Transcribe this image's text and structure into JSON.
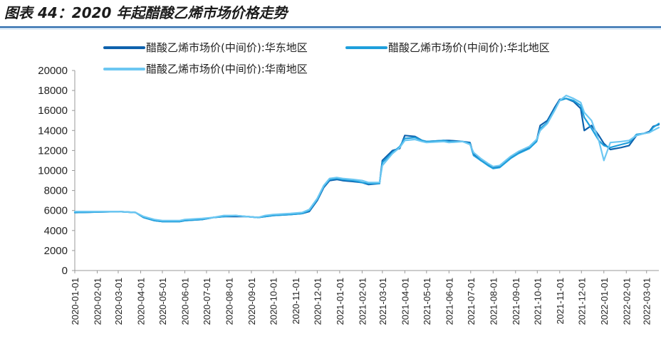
{
  "figure": {
    "title": "图表 44：2020 年起醋酸乙烯市场价格走势"
  },
  "colors": {
    "title_rule": "#1a5fa6",
    "axis": "#999999"
  },
  "chart_data": {
    "type": "line",
    "title": "图表 44：2020 年起醋酸乙烯市场价格走势",
    "xlabel": "",
    "ylabel": "",
    "ylim": [
      0,
      20000
    ],
    "yticks": [
      0,
      2000,
      4000,
      6000,
      8000,
      10000,
      12000,
      14000,
      16000,
      18000,
      20000
    ],
    "xlim": [
      "2020-01-01",
      "2022-03-18"
    ],
    "xticks": [
      "2020-01-01",
      "2020-02-01",
      "2020-03-01",
      "2020-04-01",
      "2020-05-01",
      "2020-06-01",
      "2020-07-01",
      "2020-08-01",
      "2020-09-01",
      "2020-10-01",
      "2020-11-01",
      "2020-12-01",
      "2021-01-01",
      "2021-02-01",
      "2021-03-01",
      "2021-04-01",
      "2021-05-01",
      "2021-06-01",
      "2021-07-01",
      "2021-08-01",
      "2021-09-01",
      "2021-10-01",
      "2021-11-01",
      "2021-12-01",
      "2022-01-01",
      "2022-02-01",
      "2022-03-01"
    ],
    "legend_position": "top",
    "grid": false,
    "series": [
      {
        "name": "醋酸乙烯市场价(中间价):华东地区",
        "color": "#0e62ad",
        "points": [
          [
            "2020-01-01",
            5800
          ],
          [
            "2020-03-01",
            5900
          ],
          [
            "2020-03-25",
            5800
          ],
          [
            "2020-04-05",
            5300
          ],
          [
            "2020-04-20",
            5000
          ],
          [
            "2020-05-01",
            4900
          ],
          [
            "2020-05-25",
            4900
          ],
          [
            "2020-06-01",
            5000
          ],
          [
            "2020-06-25",
            5100
          ],
          [
            "2020-07-10",
            5300
          ],
          [
            "2020-07-25",
            5400
          ],
          [
            "2020-08-10",
            5400
          ],
          [
            "2020-08-25",
            5400
          ],
          [
            "2020-09-10",
            5300
          ],
          [
            "2020-09-20",
            5400
          ],
          [
            "2020-10-01",
            5500
          ],
          [
            "2020-10-25",
            5600
          ],
          [
            "2020-11-10",
            5700
          ],
          [
            "2020-11-20",
            5900
          ],
          [
            "2020-12-01",
            7000
          ],
          [
            "2020-12-10",
            8300
          ],
          [
            "2020-12-18",
            9000
          ],
          [
            "2020-12-28",
            9100
          ],
          [
            "2021-01-05",
            9000
          ],
          [
            "2021-01-20",
            8900
          ],
          [
            "2021-02-01",
            8800
          ],
          [
            "2021-02-10",
            8600
          ],
          [
            "2021-02-25",
            8700
          ],
          [
            "2021-03-01",
            11000
          ],
          [
            "2021-03-15",
            12000
          ],
          [
            "2021-03-25",
            12200
          ],
          [
            "2021-04-01",
            13500
          ],
          [
            "2021-04-15",
            13400
          ],
          [
            "2021-04-25",
            13000
          ],
          [
            "2021-05-01",
            12900
          ],
          [
            "2021-05-25",
            13000
          ],
          [
            "2021-06-01",
            13000
          ],
          [
            "2021-06-20",
            12900
          ],
          [
            "2021-06-30",
            12800
          ],
          [
            "2021-07-05",
            11600
          ],
          [
            "2021-07-15",
            11000
          ],
          [
            "2021-07-25",
            10600
          ],
          [
            "2021-08-01",
            10300
          ],
          [
            "2021-08-10",
            10400
          ],
          [
            "2021-08-25",
            11300
          ],
          [
            "2021-09-05",
            11800
          ],
          [
            "2021-09-20",
            12300
          ],
          [
            "2021-09-30",
            13000
          ],
          [
            "2021-10-05",
            14500
          ],
          [
            "2021-10-15",
            15000
          ],
          [
            "2021-10-25",
            16300
          ],
          [
            "2021-11-01",
            17100
          ],
          [
            "2021-11-10",
            17200
          ],
          [
            "2021-11-20",
            16900
          ],
          [
            "2021-11-30",
            16200
          ],
          [
            "2021-12-05",
            14000
          ],
          [
            "2021-12-15",
            14500
          ],
          [
            "2021-12-25",
            13500
          ],
          [
            "2022-01-01",
            12700
          ],
          [
            "2022-01-10",
            12100
          ],
          [
            "2022-01-25",
            12300
          ],
          [
            "2022-02-05",
            12500
          ],
          [
            "2022-02-15",
            13500
          ],
          [
            "2022-02-25",
            13700
          ],
          [
            "2022-03-05",
            13900
          ],
          [
            "2022-03-10",
            14400
          ],
          [
            "2022-03-18",
            14600
          ]
        ]
      },
      {
        "name": "醋酸乙烯市场价(中间价):华北地区",
        "color": "#1e9fdc",
        "points": [
          [
            "2020-01-01",
            5800
          ],
          [
            "2020-03-01",
            5900
          ],
          [
            "2020-03-25",
            5800
          ],
          [
            "2020-04-05",
            5300
          ],
          [
            "2020-04-20",
            5000
          ],
          [
            "2020-05-01",
            4900
          ],
          [
            "2020-05-25",
            4900
          ],
          [
            "2020-06-01",
            5000
          ],
          [
            "2020-06-25",
            5100
          ],
          [
            "2020-07-10",
            5300
          ],
          [
            "2020-07-25",
            5400
          ],
          [
            "2020-08-10",
            5500
          ],
          [
            "2020-08-25",
            5400
          ],
          [
            "2020-09-10",
            5300
          ],
          [
            "2020-09-20",
            5400
          ],
          [
            "2020-10-01",
            5500
          ],
          [
            "2020-10-25",
            5600
          ],
          [
            "2020-11-10",
            5700
          ],
          [
            "2020-11-20",
            6000
          ],
          [
            "2020-12-01",
            7100
          ],
          [
            "2020-12-10",
            8400
          ],
          [
            "2020-12-18",
            9100
          ],
          [
            "2020-12-28",
            9200
          ],
          [
            "2021-01-05",
            9100
          ],
          [
            "2021-01-20",
            9000
          ],
          [
            "2021-02-01",
            8800
          ],
          [
            "2021-02-10",
            8700
          ],
          [
            "2021-02-25",
            8700
          ],
          [
            "2021-03-01",
            10800
          ],
          [
            "2021-03-15",
            11800
          ],
          [
            "2021-03-25",
            12400
          ],
          [
            "2021-04-01",
            13200
          ],
          [
            "2021-04-15",
            13300
          ],
          [
            "2021-04-25",
            13000
          ],
          [
            "2021-05-01",
            12900
          ],
          [
            "2021-05-25",
            13000
          ],
          [
            "2021-06-01",
            12900
          ],
          [
            "2021-06-20",
            12900
          ],
          [
            "2021-06-30",
            12700
          ],
          [
            "2021-07-05",
            11500
          ],
          [
            "2021-07-15",
            11000
          ],
          [
            "2021-07-25",
            10500
          ],
          [
            "2021-08-01",
            10200
          ],
          [
            "2021-08-10",
            10300
          ],
          [
            "2021-08-25",
            11200
          ],
          [
            "2021-09-05",
            11700
          ],
          [
            "2021-09-20",
            12200
          ],
          [
            "2021-09-30",
            12900
          ],
          [
            "2021-10-05",
            14200
          ],
          [
            "2021-10-15",
            14800
          ],
          [
            "2021-10-25",
            16100
          ],
          [
            "2021-11-01",
            17000
          ],
          [
            "2021-11-10",
            17200
          ],
          [
            "2021-11-20",
            17000
          ],
          [
            "2021-11-30",
            16500
          ],
          [
            "2021-12-05",
            15300
          ],
          [
            "2021-12-15",
            14200
          ],
          [
            "2021-12-25",
            13000
          ],
          [
            "2022-01-01",
            12500
          ],
          [
            "2022-01-10",
            12300
          ],
          [
            "2022-01-25",
            12600
          ],
          [
            "2022-02-05",
            12800
          ],
          [
            "2022-02-15",
            13600
          ],
          [
            "2022-02-25",
            13700
          ],
          [
            "2022-03-05",
            13800
          ],
          [
            "2022-03-10",
            14300
          ],
          [
            "2022-03-18",
            14700
          ]
        ]
      },
      {
        "name": "醋酸乙烯市场价(中间价):华南地区",
        "color": "#6cc7f2",
        "points": [
          [
            "2020-01-01",
            5900
          ],
          [
            "2020-03-01",
            5900
          ],
          [
            "2020-03-25",
            5800
          ],
          [
            "2020-04-05",
            5400
          ],
          [
            "2020-04-20",
            5100
          ],
          [
            "2020-05-01",
            5000
          ],
          [
            "2020-05-25",
            5000
          ],
          [
            "2020-06-01",
            5100
          ],
          [
            "2020-06-25",
            5200
          ],
          [
            "2020-07-10",
            5300
          ],
          [
            "2020-07-25",
            5500
          ],
          [
            "2020-08-10",
            5500
          ],
          [
            "2020-08-25",
            5400
          ],
          [
            "2020-09-10",
            5300
          ],
          [
            "2020-09-20",
            5500
          ],
          [
            "2020-10-01",
            5600
          ],
          [
            "2020-10-25",
            5700
          ],
          [
            "2020-11-10",
            5800
          ],
          [
            "2020-11-20",
            6100
          ],
          [
            "2020-12-01",
            7200
          ],
          [
            "2020-12-10",
            8500
          ],
          [
            "2020-12-18",
            9200
          ],
          [
            "2020-12-28",
            9300
          ],
          [
            "2021-01-05",
            9200
          ],
          [
            "2021-01-20",
            9100
          ],
          [
            "2021-02-01",
            9000
          ],
          [
            "2021-02-10",
            8800
          ],
          [
            "2021-02-25",
            8800
          ],
          [
            "2021-03-01",
            10500
          ],
          [
            "2021-03-15",
            11700
          ],
          [
            "2021-03-25",
            12300
          ],
          [
            "2021-04-01",
            13000
          ],
          [
            "2021-04-15",
            13100
          ],
          [
            "2021-04-25",
            12900
          ],
          [
            "2021-05-01",
            12800
          ],
          [
            "2021-05-25",
            12900
          ],
          [
            "2021-06-01",
            12800
          ],
          [
            "2021-06-20",
            12900
          ],
          [
            "2021-06-30",
            12600
          ],
          [
            "2021-07-05",
            11800
          ],
          [
            "2021-07-15",
            11200
          ],
          [
            "2021-07-25",
            10700
          ],
          [
            "2021-08-01",
            10400
          ],
          [
            "2021-08-10",
            10500
          ],
          [
            "2021-08-25",
            11400
          ],
          [
            "2021-09-05",
            11900
          ],
          [
            "2021-09-20",
            12400
          ],
          [
            "2021-09-30",
            13100
          ],
          [
            "2021-10-05",
            14000
          ],
          [
            "2021-10-15",
            14700
          ],
          [
            "2021-10-25",
            16000
          ],
          [
            "2021-11-01",
            17000
          ],
          [
            "2021-11-10",
            17500
          ],
          [
            "2021-11-20",
            17200
          ],
          [
            "2021-11-30",
            16800
          ],
          [
            "2021-12-05",
            15800
          ],
          [
            "2021-12-15",
            15000
          ],
          [
            "2021-12-25",
            13000
          ],
          [
            "2022-01-01",
            11000
          ],
          [
            "2022-01-10",
            12800
          ],
          [
            "2022-01-25",
            12900
          ],
          [
            "2022-02-05",
            13000
          ],
          [
            "2022-02-15",
            13500
          ],
          [
            "2022-02-25",
            13700
          ],
          [
            "2022-03-05",
            13800
          ],
          [
            "2022-03-10",
            14000
          ],
          [
            "2022-03-18",
            14300
          ]
        ]
      }
    ]
  }
}
